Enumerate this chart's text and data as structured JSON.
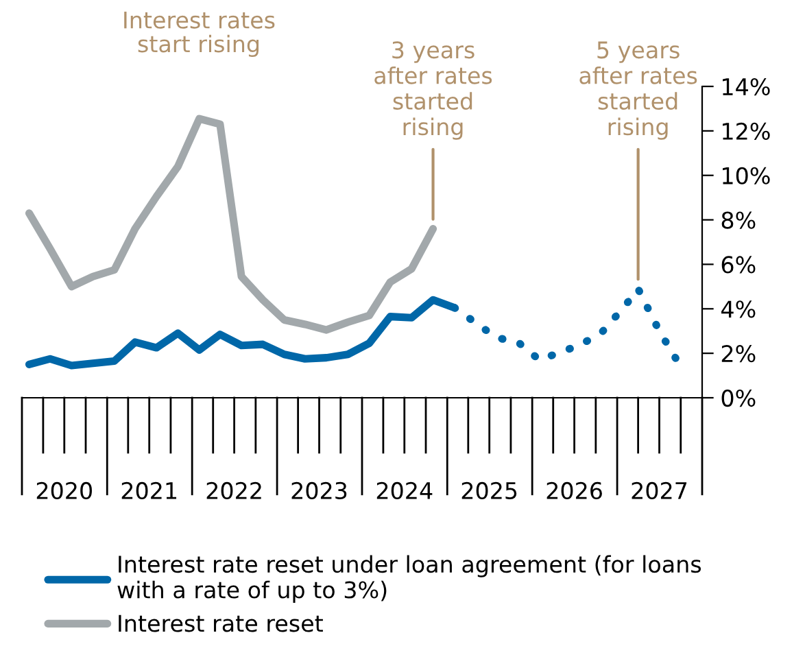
{
  "chart_data": {
    "type": "line",
    "series": [
      {
        "name": "Interest rate reset under loan agreement (for loans with a rate of up to 3%)",
        "color": "#0067a8",
        "line_style": "solid",
        "x": [
          "2020-02",
          "2020-05",
          "2020-08",
          "2020-11",
          "2021-02",
          "2021-05",
          "2021-08",
          "2021-11",
          "2022-02",
          "2022-05",
          "2022-08",
          "2022-11",
          "2023-02",
          "2023-05",
          "2023-08",
          "2023-11",
          "2024-02",
          "2024-05",
          "2024-08",
          "2024-11",
          "2025-02"
        ],
        "values": [
          1.5,
          1.75,
          1.45,
          1.55,
          1.65,
          2.5,
          2.25,
          2.9,
          2.15,
          2.85,
          2.35,
          2.4,
          1.95,
          1.75,
          1.8,
          1.95,
          2.45,
          3.65,
          3.6,
          4.4,
          4.05
        ]
      },
      {
        "color": "#0067a8",
        "line_style": "dotted",
        "x": [
          "2025-02",
          "2025-08",
          "2025-11",
          "2026-02",
          "2026-08",
          "2026-11",
          "2027-02",
          "2027-04",
          "2027-07",
          "2027-10"
        ],
        "values": [
          4.05,
          2.7,
          2.5,
          1.7,
          2.4,
          3.0,
          4.1,
          4.9,
          3.0,
          1.4
        ]
      },
      {
        "name": "Interest rate reset",
        "color": "#a2a8ab",
        "line_style": "solid",
        "x": [
          "2020-02",
          "2020-05",
          "2020-08",
          "2020-11",
          "2021-02",
          "2021-05",
          "2021-08",
          "2021-11",
          "2022-02",
          "2022-05",
          "2022-08",
          "2022-11",
          "2023-02",
          "2023-05",
          "2023-08",
          "2023-11",
          "2024-02",
          "2024-05",
          "2024-08",
          "2024-11"
        ],
        "values": [
          8.3,
          6.7,
          5.0,
          5.45,
          5.75,
          7.6,
          9.05,
          10.4,
          12.55,
          12.3,
          5.45,
          4.4,
          3.5,
          3.3,
          3.05,
          3.4,
          3.7,
          5.2,
          5.8,
          7.6
        ]
      }
    ],
    "xlim": [
      "2020-01-01",
      "2028-01-01"
    ],
    "xticks": [
      {
        "value": "2020-07-01",
        "label": "2020"
      },
      {
        "value": "2021-07-01",
        "label": "2021"
      },
      {
        "value": "2022-07-01",
        "label": "2022"
      },
      {
        "value": "2023-07-01",
        "label": "2023"
      },
      {
        "value": "2024-07-01",
        "label": "2024"
      },
      {
        "value": "2025-07-01",
        "label": "2025"
      },
      {
        "value": "2026-07-01",
        "label": "2026"
      },
      {
        "value": "2027-07-01",
        "label": "2027"
      }
    ],
    "ylim": [
      0,
      14
    ],
    "yticks": [
      {
        "value": 0,
        "label": "0%"
      },
      {
        "value": 2,
        "label": "2%"
      },
      {
        "value": 4,
        "label": "4%"
      },
      {
        "value": 6,
        "label": "6%"
      },
      {
        "value": 8,
        "label": "8%"
      },
      {
        "value": 10,
        "label": "10%"
      },
      {
        "value": 12,
        "label": "12%"
      },
      {
        "value": 14,
        "label": "14%"
      }
    ],
    "grid": false,
    "legend": "bottom",
    "annotations": [
      "Interest rates start rising",
      {
        "text": "3 years after rates started rising",
        "x": "2024-11",
        "y": 7.6
      },
      {
        "text": "5 years after rates started rising",
        "x": "2027-04",
        "y": 4.9
      }
    ]
  }
}
